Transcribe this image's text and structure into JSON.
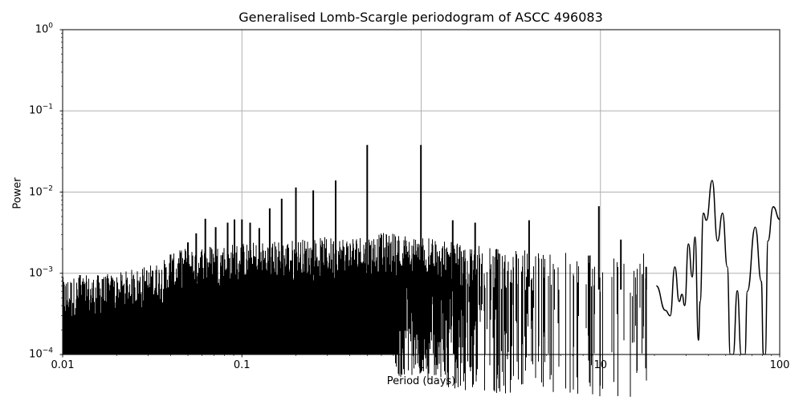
{
  "chart_data": {
    "type": "line",
    "title": "Generalised Lomb-Scargle periodogram of ASCC 496083",
    "xlabel": "Period (days)",
    "ylabel": "Power",
    "xscale": "log",
    "yscale": "log",
    "xlim": [
      0.01,
      100
    ],
    "ylim": [
      0.0001,
      1
    ],
    "grid": true,
    "legend": null,
    "x_ticks": [
      {
        "value": 0.01,
        "label": "0.01"
      },
      {
        "value": 0.1,
        "label": "0.1"
      },
      {
        "value": 1,
        "label": "1"
      },
      {
        "value": 10,
        "label": "10"
      },
      {
        "value": 100,
        "label": "100"
      }
    ],
    "y_ticks": [
      {
        "value": 1,
        "base": "10",
        "exp": "0"
      },
      {
        "value": 0.1,
        "base": "10",
        "exp": "−1"
      },
      {
        "value": 0.01,
        "base": "10",
        "exp": "−2"
      },
      {
        "value": 0.001,
        "base": "10",
        "exp": "−3"
      },
      {
        "value": 0.0001,
        "base": "10",
        "exp": "−4"
      }
    ],
    "line_color": "#000000",
    "grid_color": "#b0b0b0",
    "noise_floor": [
      {
        "period": 0.01,
        "power": 0.00045
      },
      {
        "period": 0.02,
        "power": 0.0005
      },
      {
        "period": 0.035,
        "power": 0.0007
      },
      {
        "period": 0.05,
        "power": 0.0011
      },
      {
        "period": 0.1,
        "power": 0.0012
      },
      {
        "period": 0.3,
        "power": 0.0014
      },
      {
        "period": 0.7,
        "power": 0.0016
      },
      {
        "period": 1.5,
        "power": 0.0012
      },
      {
        "period": 3,
        "power": 0.001
      },
      {
        "period": 10,
        "power": 0.0009
      }
    ],
    "peaks": [
      {
        "period": 0.0125,
        "power": 0.00095
      },
      {
        "period": 0.0167,
        "power": 0.00085
      },
      {
        "period": 0.025,
        "power": 0.00085
      },
      {
        "period": 0.0333,
        "power": 0.0011
      },
      {
        "period": 0.04,
        "power": 0.0017
      },
      {
        "period": 0.0455,
        "power": 0.0018
      },
      {
        "period": 0.05,
        "power": 0.0024
      },
      {
        "period": 0.0556,
        "power": 0.0031
      },
      {
        "period": 0.0625,
        "power": 0.0047
      },
      {
        "period": 0.0714,
        "power": 0.0037
      },
      {
        "period": 0.0833,
        "power": 0.0042
      },
      {
        "period": 0.0909,
        "power": 0.0046
      },
      {
        "period": 0.1,
        "power": 0.0046
      },
      {
        "period": 0.1111,
        "power": 0.0042
      },
      {
        "period": 0.125,
        "power": 0.0036
      },
      {
        "period": 0.1429,
        "power": 0.0063
      },
      {
        "period": 0.1667,
        "power": 0.0083
      },
      {
        "period": 0.2,
        "power": 0.0114
      },
      {
        "period": 0.25,
        "power": 0.0105
      },
      {
        "period": 0.3333,
        "power": 0.0139
      },
      {
        "period": 0.5,
        "power": 0.038
      },
      {
        "period": 0.9973,
        "power": 0.038
      },
      {
        "period": 1.5,
        "power": 0.0045
      },
      {
        "period": 2.0,
        "power": 0.0042
      },
      {
        "period": 4.0,
        "power": 0.0045
      },
      {
        "period": 9.8,
        "power": 0.0067
      },
      {
        "period": 13.0,
        "power": 0.0026
      },
      {
        "period": 18.0,
        "power": 0.0012
      },
      {
        "period": 22.0,
        "power": 0.0008
      },
      {
        "period": 25.5,
        "power": 0.0012
      },
      {
        "period": 30.0,
        "power": 0.0023
      },
      {
        "period": 32.0,
        "power": 0.0028
      },
      {
        "period": 36.5,
        "power": 0.0058
      },
      {
        "period": 42.0,
        "power": 0.0139
      },
      {
        "period": 48.0,
        "power": 0.0055
      },
      {
        "period": 58.0,
        "power": 0.00061
      },
      {
        "period": 73.0,
        "power": 0.0037
      },
      {
        "period": 90.0,
        "power": 0.0066
      },
      {
        "period": 100.0,
        "power": 0.0046
      }
    ],
    "long_period_curve": [
      {
        "period": 20.5,
        "power": 0.0007
      },
      {
        "period": 23.0,
        "power": 0.00035
      },
      {
        "period": 24.5,
        "power": 0.0003
      },
      {
        "period": 26.0,
        "power": 0.0012
      },
      {
        "period": 27.5,
        "power": 0.00045
      },
      {
        "period": 28.5,
        "power": 0.00055
      },
      {
        "period": 29.5,
        "power": 0.0004
      },
      {
        "period": 31.0,
        "power": 0.0023
      },
      {
        "period": 32.5,
        "power": 0.0009
      },
      {
        "period": 33.7,
        "power": 0.0028
      },
      {
        "period": 35.2,
        "power": 0.00015
      },
      {
        "period": 36.0,
        "power": 0.00045
      },
      {
        "period": 37.5,
        "power": 0.0055
      },
      {
        "period": 39.0,
        "power": 0.0045
      },
      {
        "period": 42.0,
        "power": 0.0139
      },
      {
        "period": 45.0,
        "power": 0.0025
      },
      {
        "period": 48.0,
        "power": 0.0055
      },
      {
        "period": 51.0,
        "power": 0.0012
      },
      {
        "period": 53.0,
        "power": 0.0001
      },
      {
        "period": 55.0,
        "power": 0.0001
      },
      {
        "period": 58.0,
        "power": 0.00061
      },
      {
        "period": 61.0,
        "power": 0.0001
      },
      {
        "period": 64.0,
        "power": 0.0001
      },
      {
        "period": 66.0,
        "power": 0.0006
      },
      {
        "period": 73.0,
        "power": 0.0037
      },
      {
        "period": 79.0,
        "power": 0.0008
      },
      {
        "period": 81.0,
        "power": 0.0001
      },
      {
        "period": 83.0,
        "power": 0.0001
      },
      {
        "period": 86.0,
        "power": 0.0025
      },
      {
        "period": 92.0,
        "power": 0.0066
      },
      {
        "period": 100.0,
        "power": 0.0046
      }
    ]
  }
}
